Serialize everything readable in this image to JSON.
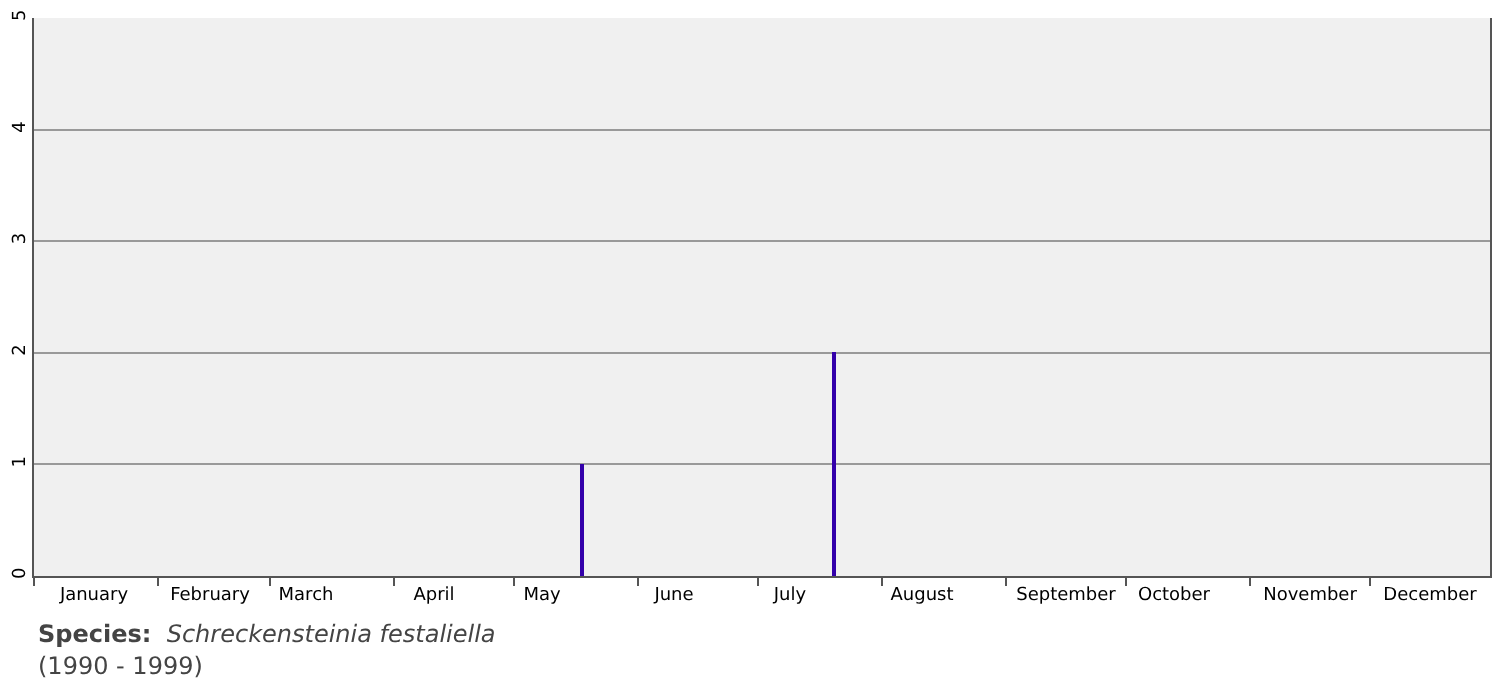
{
  "chart_data": {
    "type": "bar",
    "x": [
      "--05-18",
      "--07-20"
    ],
    "values": [
      1,
      2
    ],
    "color": "#3300aa",
    "xlim": [
      "--01-01",
      "--12-31"
    ],
    "xticks": [
      {
        "value": "--01-01",
        "label": null
      },
      {
        "value": "--01-16",
        "label": "January"
      },
      {
        "value": "--02-01",
        "label": null
      },
      {
        "value": "--02-14",
        "label": "February"
      },
      {
        "value": "--03-01",
        "label": null
      },
      {
        "value": "--03-10",
        "label": "March"
      },
      {
        "value": "--04-01",
        "label": null
      },
      {
        "value": "--04-11",
        "label": "April"
      },
      {
        "value": "--05-01",
        "label": null
      },
      {
        "value": "--05-08",
        "label": "May"
      },
      {
        "value": "--06-01",
        "label": null
      },
      {
        "value": "--06-10",
        "label": "June"
      },
      {
        "value": "--07-01",
        "label": null
      },
      {
        "value": "--07-09",
        "label": "July"
      },
      {
        "value": "--08-01",
        "label": null
      },
      {
        "value": "--08-11",
        "label": "August"
      },
      {
        "value": "--09-01",
        "label": null
      },
      {
        "value": "--09-16",
        "label": "September"
      },
      {
        "value": "--10-01",
        "label": null
      },
      {
        "value": "--10-13",
        "label": "October"
      },
      {
        "value": "--11-01",
        "label": null
      },
      {
        "value": "--11-16",
        "label": "November"
      },
      {
        "value": "--12-01",
        "label": null
      },
      {
        "value": "--12-16",
        "label": "December"
      }
    ],
    "ylim": [
      0,
      5
    ],
    "yticks": [
      0,
      1,
      2,
      3,
      4,
      5
    ],
    "grid": "y",
    "annotations": [
      "Species: Schreckensteinia festaliella",
      "(1990 - 1999)"
    ]
  }
}
